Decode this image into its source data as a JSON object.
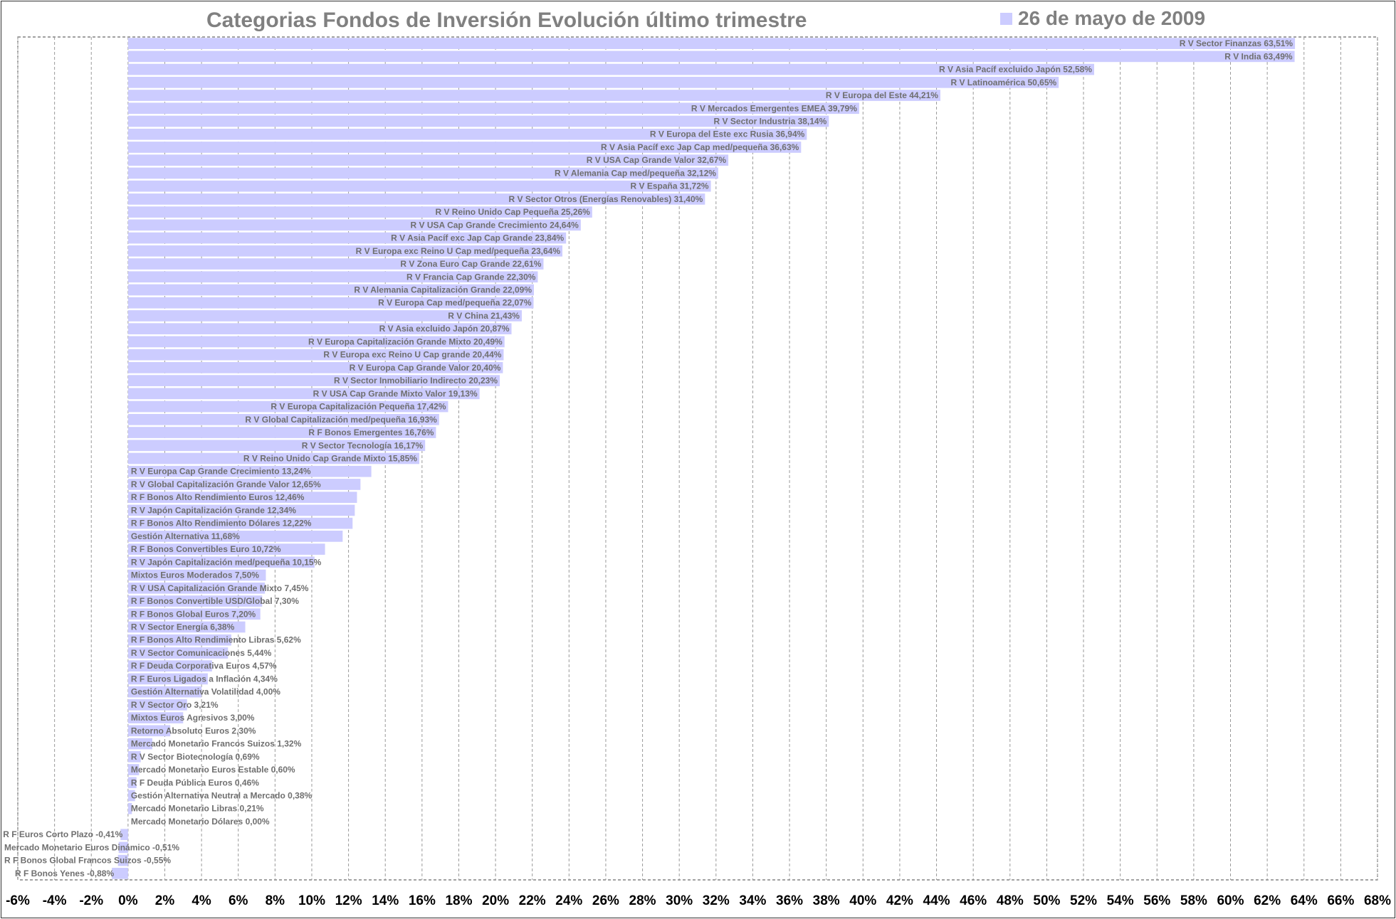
{
  "chart_data": {
    "type": "bar",
    "orientation": "horizontal",
    "title": "Categorias Fondos de Inversión Evolución último trimestre",
    "series_name": "26 de mayo de 2009",
    "color": "#ccccff",
    "xlim": [
      -6,
      68
    ],
    "xtick_step": 2,
    "tick_suffix": "%",
    "grid": true,
    "legend_position": "top-right",
    "bars": [
      {
        "label": "R V Sector Finanzas",
        "value": 63.51,
        "display": "63,51%"
      },
      {
        "label": "R V India",
        "value": 63.49,
        "display": "63,49%"
      },
      {
        "label": "R V Asia Pacíf excluido Japón",
        "value": 52.58,
        "display": "52,58%"
      },
      {
        "label": "R V Latinoamérica",
        "value": 50.65,
        "display": "50,65%"
      },
      {
        "label": "R V Europa del Este",
        "value": 44.21,
        "display": "44,21%"
      },
      {
        "label": "R V Mercados Emergentes EMEA",
        "value": 39.79,
        "display": "39,79%"
      },
      {
        "label": "R V Sector Industria",
        "value": 38.14,
        "display": "38,14%"
      },
      {
        "label": "R V Europa del Este exc Rusia",
        "value": 36.94,
        "display": "36,94%"
      },
      {
        "label": "R V Asia Pacíf exc Jap Cap med/pequeña",
        "value": 36.63,
        "display": "36,63%"
      },
      {
        "label": "R V USA Cap Grande Valor",
        "value": 32.67,
        "display": "32,67%"
      },
      {
        "label": "R V Alemania Cap med/pequeña",
        "value": 32.12,
        "display": "32,12%"
      },
      {
        "label": "R V España",
        "value": 31.72,
        "display": "31,72%"
      },
      {
        "label": "R V Sector Otros (Energías Renovables)",
        "value": 31.4,
        "display": "31,40%"
      },
      {
        "label": "R V Reino Unido Cap Pequeña",
        "value": 25.26,
        "display": "25,26%"
      },
      {
        "label": "R V USA Cap Grande Crecimiento",
        "value": 24.64,
        "display": "24,64%"
      },
      {
        "label": "R V Asia Pacíf exc Jap Cap Grande",
        "value": 23.84,
        "display": "23,84%"
      },
      {
        "label": "R V Europa exc Reino U Cap med/pequeña",
        "value": 23.64,
        "display": "23,64%"
      },
      {
        "label": "R V Zona Euro Cap Grande",
        "value": 22.61,
        "display": "22,61%"
      },
      {
        "label": "R V Francia Cap Grande",
        "value": 22.3,
        "display": "22,30%"
      },
      {
        "label": "R V Alemania Capitalización Grande",
        "value": 22.09,
        "display": "22,09%"
      },
      {
        "label": "R V Europa Cap med/pequeña",
        "value": 22.07,
        "display": "22,07%"
      },
      {
        "label": "R V China",
        "value": 21.43,
        "display": "21,43%"
      },
      {
        "label": "R V Asia excluido Japón",
        "value": 20.87,
        "display": "20,87%"
      },
      {
        "label": "R V Europa Capitalización Grande Mixto",
        "value": 20.49,
        "display": "20,49%"
      },
      {
        "label": "R V Europa exc Reino U Cap grande",
        "value": 20.44,
        "display": "20,44%"
      },
      {
        "label": "R V Europa Cap Grande Valor",
        "value": 20.4,
        "display": "20,40%"
      },
      {
        "label": "R V Sector Inmobiliario Indirecto",
        "value": 20.23,
        "display": "20,23%"
      },
      {
        "label": "R V USA Cap Grande Mixto Valor",
        "value": 19.13,
        "display": "19,13%"
      },
      {
        "label": "R V Europa Capitalización Pequeña",
        "value": 17.42,
        "display": "17,42%"
      },
      {
        "label": "R V Global Capitalización med/pequeña",
        "value": 16.93,
        "display": "16,93%"
      },
      {
        "label": "R F Bonos Emergentes",
        "value": 16.76,
        "display": "16,76%"
      },
      {
        "label": "R V Sector Tecnología",
        "value": 16.17,
        "display": "16,17%"
      },
      {
        "label": "R V Reino Unido Cap Grande Mixto",
        "value": 15.85,
        "display": "15,85%"
      },
      {
        "label": "R V Europa Cap Grande Crecimiento",
        "value": 13.24,
        "display": "13,24%"
      },
      {
        "label": "R V Global Capitalización Grande Valor",
        "value": 12.65,
        "display": "12,65%"
      },
      {
        "label": "R F Bonos Alto Rendimiento Euros",
        "value": 12.46,
        "display": "12,46%"
      },
      {
        "label": "R V Japón Capitalización Grande",
        "value": 12.34,
        "display": "12,34%"
      },
      {
        "label": "R F Bonos Alto Rendimiento Dólares",
        "value": 12.22,
        "display": "12,22%"
      },
      {
        "label": "Gestión Alternativa",
        "value": 11.68,
        "display": "11,68%"
      },
      {
        "label": "R F Bonos Convertibles Euro",
        "value": 10.72,
        "display": "10,72%"
      },
      {
        "label": "R V Japón Capitalización med/pequeña",
        "value": 10.15,
        "display": "10,15%"
      },
      {
        "label": "Mixtos Euros Moderados",
        "value": 7.5,
        "display": "7,50%"
      },
      {
        "label": "R V USA Capitalización Grande Mixto",
        "value": 7.45,
        "display": "7,45%"
      },
      {
        "label": "R F Bonos Convertible USD/Global",
        "value": 7.3,
        "display": "7,30%"
      },
      {
        "label": "R F Bonos Global Euros",
        "value": 7.2,
        "display": "7,20%"
      },
      {
        "label": "R V Sector Energía",
        "value": 6.38,
        "display": "6,38%"
      },
      {
        "label": "R F Bonos Alto Rendimiento Libras",
        "value": 5.62,
        "display": "5,62%"
      },
      {
        "label": "R V Sector Comunicaciones",
        "value": 5.44,
        "display": "5,44%"
      },
      {
        "label": "R F Deuda Corporativa Euros",
        "value": 4.57,
        "display": "4,57%"
      },
      {
        "label": "R F Euros Ligados a Inflación",
        "value": 4.34,
        "display": "4,34%"
      },
      {
        "label": "Gestión Alternativa Volatilidad",
        "value": 4.0,
        "display": "4,00%"
      },
      {
        "label": "R V Sector Oro",
        "value": 3.21,
        "display": "3,21%"
      },
      {
        "label": "Mixtos Euros Agresivos",
        "value": 3.0,
        "display": "3,00%"
      },
      {
        "label": "Retorno Absoluto Euros",
        "value": 2.3,
        "display": "2,30%"
      },
      {
        "label": "Mercado Monetario Francos Suizos",
        "value": 1.32,
        "display": "1,32%"
      },
      {
        "label": "R V Sector Biotecnología",
        "value": 0.69,
        "display": "0,69%"
      },
      {
        "label": "Mercado Monetario Euros Estable",
        "value": 0.6,
        "display": "0,60%"
      },
      {
        "label": "R F Deuda Pública Euros",
        "value": 0.46,
        "display": "0,46%"
      },
      {
        "label": "Gestión Alternativa Neutral a Mercado",
        "value": 0.38,
        "display": "0,38%"
      },
      {
        "label": "Mercado Monetario Libras",
        "value": 0.21,
        "display": "0,21%"
      },
      {
        "label": "Mercado Monetario Dólares",
        "value": 0.0,
        "display": "0,00%"
      },
      {
        "label": "R F Euros Corto Plazo",
        "value": -0.41,
        "display": "-0,41%"
      },
      {
        "label": "Mercado Monetario Euros Dinámico",
        "value": -0.51,
        "display": "-0,51%"
      },
      {
        "label": "R F Bonos Global Francos Suizos",
        "value": -0.55,
        "display": "-0,55%"
      },
      {
        "label": "R F Bonos Yenes",
        "value": -0.88,
        "display": "-0,88%"
      }
    ]
  }
}
